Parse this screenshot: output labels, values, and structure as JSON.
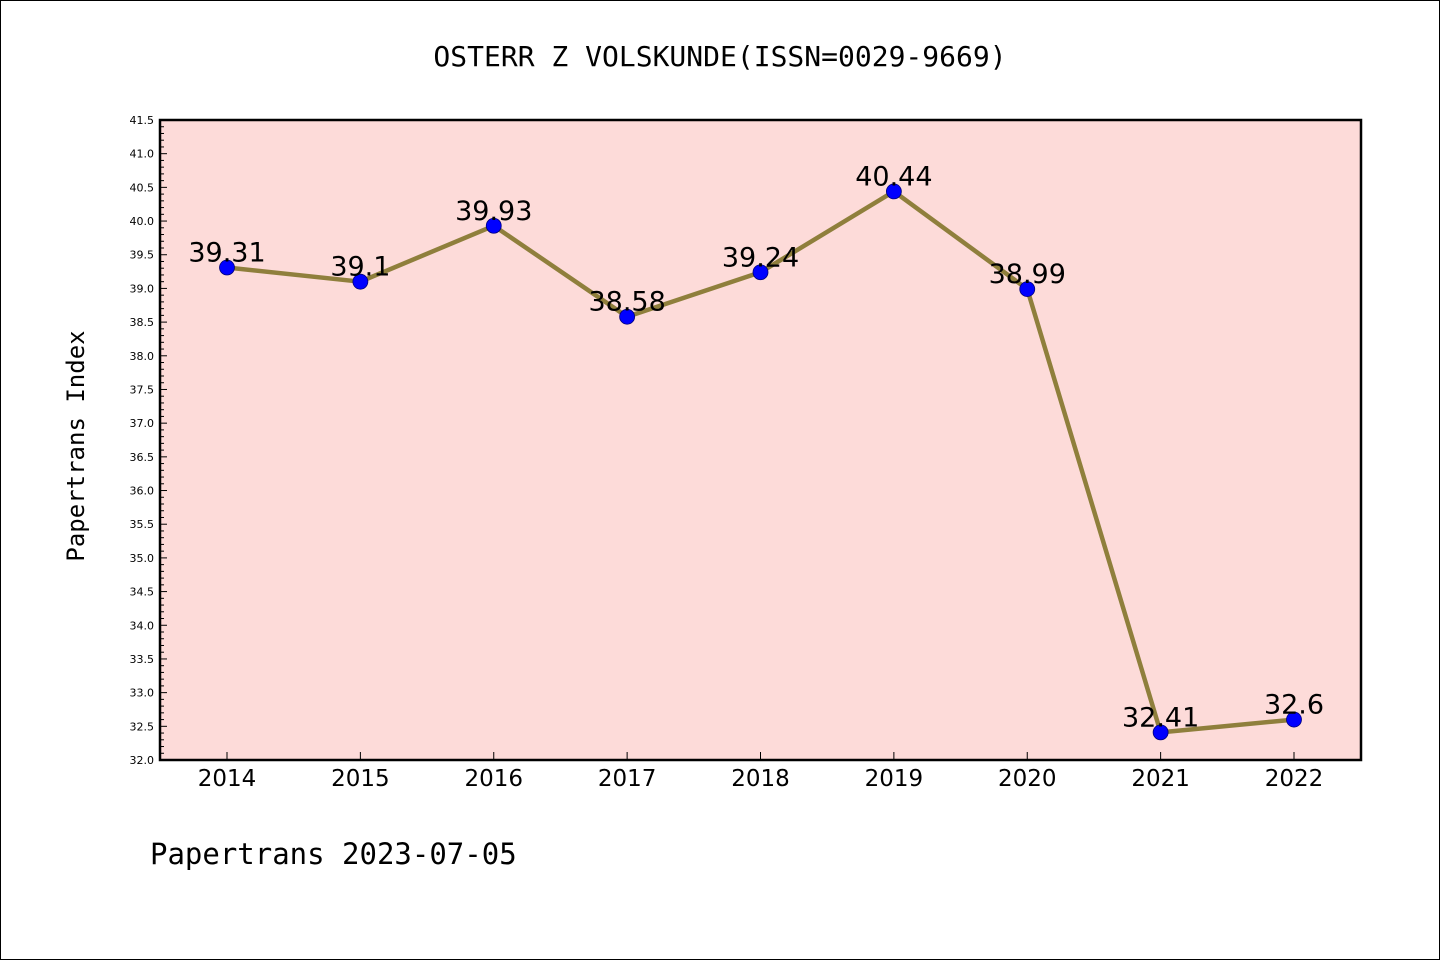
{
  "chart_data": {
    "type": "line",
    "title": "OSTERR Z VOLSKUNDE(ISSN=0029-9669)",
    "ylabel": "Papertrans Index",
    "xlabel": "",
    "footer": "Papertrans 2023-07-05",
    "categories": [
      "2014",
      "2015",
      "2016",
      "2017",
      "2018",
      "2019",
      "2020",
      "2021",
      "2022"
    ],
    "values": [
      39.31,
      39.1,
      39.93,
      38.58,
      39.24,
      40.44,
      38.99,
      32.41,
      32.6
    ],
    "data_labels": [
      "39.31",
      "39.1",
      "39.93",
      "38.58",
      "39.24",
      "40.44",
      "38.99",
      "32.41",
      "32.6"
    ],
    "ylim": [
      32.0,
      41.5
    ],
    "yticks": [
      "32.0",
      "32.5",
      "33.0",
      "33.5",
      "34.0",
      "34.5",
      "35.0",
      "35.5",
      "36.0",
      "36.5",
      "37.0",
      "37.5",
      "38.0",
      "38.5",
      "39.0",
      "39.5",
      "40.0",
      "40.5",
      "41.0",
      "41.5"
    ],
    "grid": false,
    "colors": {
      "plot_background": "#fddbd9",
      "line": "#8f7f3c",
      "marker": "#0000ff"
    }
  }
}
